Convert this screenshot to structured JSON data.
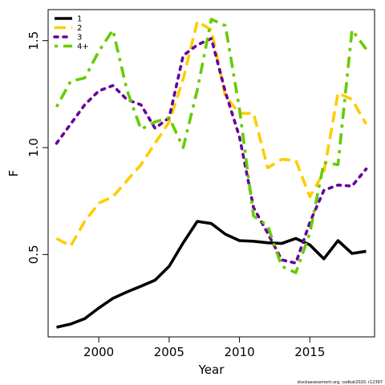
{
  "chart_data": {
    "type": "line",
    "title": "",
    "xlabel": "Year",
    "ylabel": "F",
    "xlim": [
      1996.4,
      2019.6
    ],
    "ylim": [
      0.115,
      1.645
    ],
    "x_ticks": [
      2000,
      2005,
      2010,
      2015
    ],
    "y_ticks": [
      0.5,
      1.0,
      1.5
    ],
    "x_tick_labels": [
      "2000",
      "2005",
      "2010",
      "2015"
    ],
    "y_tick_labels": [
      "0.5",
      "1.0",
      "1.5"
    ],
    "grid": false,
    "legend_position": "top-left",
    "x": [
      1997,
      1998,
      1999,
      2000,
      2001,
      2002,
      2003,
      2004,
      2005,
      2006,
      2007,
      2008,
      2009,
      2010,
      2011,
      2012,
      2013,
      2014,
      2015,
      2016,
      2017,
      2018,
      2019
    ],
    "series": [
      {
        "name": "1",
        "color": "#000000",
        "dash": "solid",
        "values": [
          0.16,
          0.175,
          0.2,
          0.25,
          0.295,
          0.325,
          0.352,
          0.38,
          0.445,
          0.555,
          0.655,
          0.645,
          0.595,
          0.565,
          0.562,
          0.555,
          0.552,
          0.575,
          0.545,
          0.48,
          0.565,
          0.505,
          0.515
        ]
      },
      {
        "name": "2",
        "color": "#ffcc00",
        "dash": "longdash",
        "values": [
          0.575,
          0.54,
          0.655,
          0.74,
          0.77,
          0.845,
          0.92,
          1.02,
          1.12,
          1.32,
          1.59,
          1.55,
          1.24,
          1.16,
          1.16,
          0.905,
          0.945,
          0.94,
          0.77,
          0.885,
          1.255,
          1.225,
          1.11
        ]
      },
      {
        "name": "3",
        "color": "#660099",
        "dash": "dotted",
        "values": [
          1.02,
          1.11,
          1.2,
          1.265,
          1.29,
          1.225,
          1.2,
          1.09,
          1.14,
          1.43,
          1.48,
          1.51,
          1.26,
          1.05,
          0.72,
          0.6,
          0.475,
          0.46,
          0.65,
          0.8,
          0.825,
          0.82,
          0.9
        ]
      },
      {
        "name": "4+",
        "color": "#66cc00",
        "dash": "dashdot",
        "values": [
          1.19,
          1.31,
          1.325,
          1.45,
          1.55,
          1.27,
          1.085,
          1.12,
          1.14,
          1.0,
          1.27,
          1.6,
          1.57,
          1.18,
          0.68,
          0.635,
          0.445,
          0.415,
          0.6,
          0.93,
          0.92,
          1.55,
          1.46
        ]
      }
    ],
    "credit": "stockassessment.org, codkat2020, r12397"
  }
}
